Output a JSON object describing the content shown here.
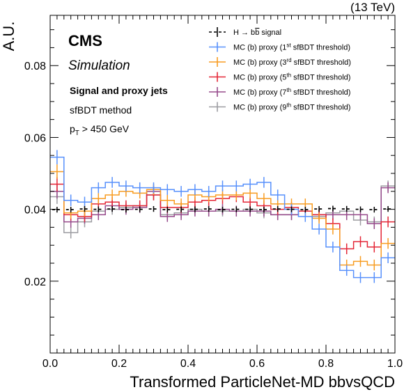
{
  "energy_label": "(13 TeV)",
  "cms_label": "CMS",
  "sim_label": "Simulation",
  "ann_title": "Signal and proxy jets",
  "ann_method": "sfBDT method",
  "ann_pt_p": "p",
  "ann_pt_sub": "T",
  "ann_pt_rest": " > 450 GeV",
  "chart_data": {
    "type": "line",
    "xlabel": "Transformed ParticleNet-MD bbvsQCD",
    "ylabel": "A.U.",
    "xlim": [
      0.0,
      1.0
    ],
    "ylim": [
      0.0,
      0.094
    ],
    "xticks": [
      "0.0",
      "0.2",
      "0.4",
      "0.6",
      "0.8",
      "1.0"
    ],
    "yticks": [
      "0.02",
      "0.04",
      "0.06",
      "0.08"
    ],
    "bin_edges": [
      0.0,
      0.04,
      0.08,
      0.12,
      0.16,
      0.2,
      0.24,
      0.28,
      0.32,
      0.36,
      0.4,
      0.44,
      0.48,
      0.52,
      0.56,
      0.6,
      0.64,
      0.68,
      0.72,
      0.76,
      0.8,
      0.84,
      0.88,
      0.92,
      0.96,
      1.0
    ],
    "legend_position": "top-right",
    "series": [
      {
        "name": "H→b̅b signal",
        "legend_main": "H → b",
        "legend_bar": "b",
        "legend_tail": " signal",
        "color": "#000000",
        "dashed": true,
        "values": [
          0.0399,
          0.0399,
          0.0401,
          0.04,
          0.0401,
          0.0399,
          0.04,
          0.0401,
          0.0399,
          0.04,
          0.04,
          0.0401,
          0.0399,
          0.04,
          0.04,
          0.0399,
          0.0401,
          0.04,
          0.0399,
          0.0401,
          0.0402,
          0.0401,
          0.04,
          0.0399,
          0.0401
        ],
        "errors": [
          0.0008,
          0.0008,
          0.0008,
          0.0008,
          0.0008,
          0.0008,
          0.0008,
          0.0008,
          0.0008,
          0.0008,
          0.0008,
          0.0008,
          0.0008,
          0.0008,
          0.0008,
          0.0008,
          0.0008,
          0.0008,
          0.0008,
          0.0008,
          0.0008,
          0.0008,
          0.0008,
          0.0008,
          0.0008
        ]
      },
      {
        "name": "MC (b) proxy (1st sfBDT threshold)",
        "legend_pre": "MC (b) proxy (1",
        "legend_sup": "st",
        "legend_post": " sfBDT threshold)",
        "color": "#5790fc",
        "values": [
          0.0545,
          0.0425,
          0.042,
          0.046,
          0.0475,
          0.0465,
          0.046,
          0.046,
          0.0455,
          0.045,
          0.0455,
          0.045,
          0.0465,
          0.0465,
          0.047,
          0.0475,
          0.044,
          0.04,
          0.038,
          0.0345,
          0.0295,
          0.023,
          0.021,
          0.021,
          0.0265
        ],
        "errors": [
          0.002,
          0.0016,
          0.0015,
          0.0015,
          0.0015,
          0.0015,
          0.0015,
          0.0015,
          0.0015,
          0.0015,
          0.0015,
          0.0015,
          0.0015,
          0.0015,
          0.0015,
          0.0015,
          0.0015,
          0.0015,
          0.0015,
          0.0015,
          0.0015,
          0.0015,
          0.0015,
          0.0015,
          0.0015
        ]
      },
      {
        "name": "MC (b) proxy (3rd sfBDT threshold)",
        "legend_pre": "MC (b) proxy (3",
        "legend_sup": "rd",
        "legend_post": " sfBDT threshold)",
        "color": "#f89c20",
        "values": [
          0.0505,
          0.039,
          0.0395,
          0.043,
          0.044,
          0.045,
          0.0445,
          0.0455,
          0.0425,
          0.0415,
          0.044,
          0.0435,
          0.044,
          0.044,
          0.0445,
          0.043,
          0.0415,
          0.0415,
          0.0415,
          0.0375,
          0.0345,
          0.0245,
          0.0255,
          0.0245,
          0.0305
        ],
        "errors": [
          0.002,
          0.0016,
          0.0015,
          0.0015,
          0.0015,
          0.0015,
          0.0015,
          0.0015,
          0.0015,
          0.0015,
          0.0015,
          0.0015,
          0.0015,
          0.0015,
          0.0015,
          0.0015,
          0.0015,
          0.0015,
          0.0015,
          0.0015,
          0.0015,
          0.0015,
          0.0015,
          0.0015,
          0.0015
        ]
      },
      {
        "name": "MC (b) proxy (5th sfBDT threshold)",
        "legend_pre": "MC (b) proxy (5",
        "legend_sup": "th",
        "legend_post": " sfBDT threshold)",
        "color": "#e42536",
        "values": [
          0.047,
          0.0385,
          0.038,
          0.0415,
          0.042,
          0.041,
          0.041,
          0.044,
          0.0405,
          0.0405,
          0.042,
          0.0425,
          0.043,
          0.0435,
          0.042,
          0.041,
          0.04,
          0.0405,
          0.0395,
          0.0385,
          0.036,
          0.029,
          0.031,
          0.0295,
          0.0365
        ],
        "errors": [
          0.002,
          0.0016,
          0.0015,
          0.0015,
          0.0015,
          0.0015,
          0.0015,
          0.0015,
          0.0015,
          0.0015,
          0.0015,
          0.0015,
          0.0015,
          0.0015,
          0.0015,
          0.0015,
          0.0015,
          0.0015,
          0.0015,
          0.0015,
          0.0015,
          0.0015,
          0.0015,
          0.0015,
          0.0015
        ]
      },
      {
        "name": "MC (b) proxy (7th sfBDT threshold)",
        "legend_pre": "MC (b) proxy (7",
        "legend_sup": "th",
        "legend_post": " sfBDT threshold)",
        "color": "#964a8b",
        "values": [
          0.045,
          0.0365,
          0.0375,
          0.0385,
          0.041,
          0.04,
          0.0405,
          0.045,
          0.038,
          0.0385,
          0.0395,
          0.0395,
          0.04,
          0.0395,
          0.0395,
          0.0395,
          0.0385,
          0.0385,
          0.0395,
          0.0385,
          0.0385,
          0.0385,
          0.0385,
          0.036,
          0.046
        ],
        "errors": [
          0.002,
          0.0016,
          0.0015,
          0.0015,
          0.0015,
          0.0015,
          0.0015,
          0.0015,
          0.0015,
          0.0015,
          0.0015,
          0.0015,
          0.0015,
          0.0015,
          0.0015,
          0.0015,
          0.0015,
          0.0015,
          0.0015,
          0.0015,
          0.0015,
          0.0015,
          0.0015,
          0.0015,
          0.0015
        ]
      },
      {
        "name": "MC (b) proxy (9th sfBDT threshold)",
        "legend_pre": "MC (b) proxy (9",
        "legend_sup": "th",
        "legend_post": " sfBDT threshold)",
        "color": "#9c9ca1",
        "values": [
          0.0435,
          0.0335,
          0.0365,
          0.0395,
          0.04,
          0.0405,
          0.041,
          0.044,
          0.0385,
          0.039,
          0.04,
          0.0395,
          0.0395,
          0.0395,
          0.04,
          0.039,
          0.0385,
          0.0385,
          0.0395,
          0.038,
          0.039,
          0.0395,
          0.037,
          0.0365,
          0.0465
        ],
        "errors": [
          0.002,
          0.0016,
          0.0015,
          0.0015,
          0.0015,
          0.0015,
          0.0015,
          0.0015,
          0.0015,
          0.0015,
          0.0015,
          0.0015,
          0.0015,
          0.0015,
          0.0015,
          0.0015,
          0.0015,
          0.0015,
          0.0015,
          0.0015,
          0.0015,
          0.0015,
          0.0015,
          0.0015,
          0.0015
        ]
      }
    ]
  }
}
